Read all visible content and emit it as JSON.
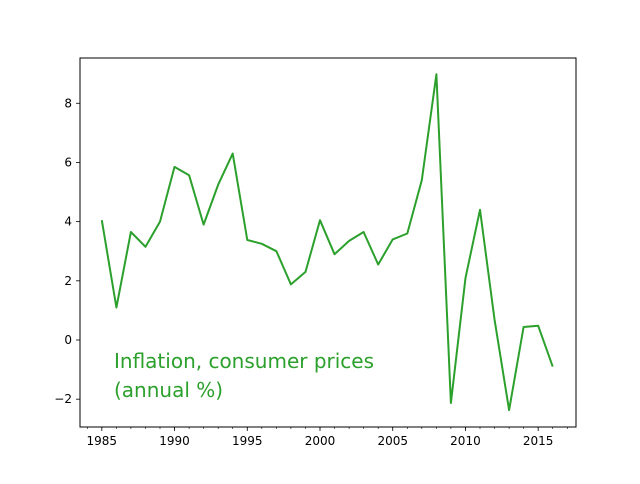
{
  "chart_data": {
    "type": "line",
    "title": "",
    "xlabel": "",
    "ylabel": "",
    "xlim": [
      1983.5,
      2017.6
    ],
    "ylim": [
      -2.94,
      9.53
    ],
    "grid": false,
    "x_ticks": [
      1985,
      1990,
      1995,
      2000,
      2005,
      2010,
      2015
    ],
    "x_tick_labels": [
      "1985",
      "1990",
      "1995",
      "2000",
      "2005",
      "2010",
      "2015"
    ],
    "y_ticks": [
      -2,
      0,
      2,
      4,
      6,
      8
    ],
    "y_tick_labels": [
      "−2",
      "0",
      "2",
      "4",
      "6",
      "8"
    ],
    "annotation": [
      "Inflation, consumer prices",
      "(annual %)"
    ],
    "series": [
      {
        "color": "#2ca02c",
        "x": [
          1985,
          1986,
          1987,
          1988,
          1989,
          1990,
          1991,
          1992,
          1993,
          1994,
          1995,
          1996,
          1997,
          1998,
          1999,
          2000,
          2001,
          2002,
          2003,
          2004,
          2005,
          2006,
          2007,
          2008,
          2009,
          2010,
          2011,
          2012,
          2013,
          2014,
          2015,
          2016
        ],
        "values": [
          4.05,
          1.1,
          3.65,
          3.15,
          4.0,
          5.85,
          5.57,
          3.9,
          5.25,
          6.3,
          3.38,
          3.25,
          3.0,
          1.88,
          2.3,
          4.05,
          2.9,
          3.35,
          3.65,
          2.55,
          3.4,
          3.6,
          5.4,
          8.98,
          -2.13,
          2.1,
          4.4,
          0.7,
          -2.37,
          0.44,
          0.48,
          -0.9
        ]
      }
    ]
  }
}
